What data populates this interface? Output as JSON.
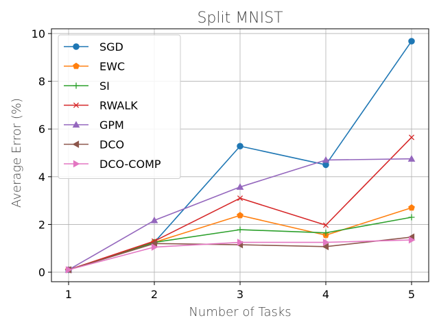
{
  "chart_data": {
    "type": "line",
    "title": "Split MNIST",
    "xlabel": "Number of Tasks",
    "ylabel": "Average Error (%)",
    "x": [
      1,
      2,
      3,
      4,
      5
    ],
    "xticks": [
      "1",
      "2",
      "3",
      "4",
      "5"
    ],
    "yticks": [
      "0",
      "2",
      "4",
      "6",
      "8",
      "10"
    ],
    "xlim": [
      0.8,
      5.2
    ],
    "ylim": [
      -0.4,
      10.2
    ],
    "grid": true,
    "legend_position": "upper-left",
    "series": [
      {
        "name": "SGD",
        "values": [
          0.1,
          1.25,
          5.28,
          4.5,
          9.68
        ],
        "color": "#1f77b4",
        "marker": "circle"
      },
      {
        "name": "EWC",
        "values": [
          0.1,
          1.25,
          2.38,
          1.55,
          2.7
        ],
        "color": "#ff7f0e",
        "marker": "pentagon"
      },
      {
        "name": "SI",
        "values": [
          0.1,
          1.25,
          1.78,
          1.65,
          2.3
        ],
        "color": "#2ca02c",
        "marker": "plus"
      },
      {
        "name": "RWALK",
        "values": [
          0.1,
          1.3,
          3.1,
          1.97,
          5.65
        ],
        "color": "#d62728",
        "marker": "x"
      },
      {
        "name": "GPM",
        "values": [
          0.1,
          2.17,
          3.57,
          4.7,
          4.75
        ],
        "color": "#9467bd",
        "marker": "triangle-up"
      },
      {
        "name": "DCO",
        "values": [
          0.1,
          1.2,
          1.15,
          1.07,
          1.47
        ],
        "color": "#8c564b",
        "marker": "triangle-left"
      },
      {
        "name": "DCO-COMP",
        "values": [
          0.1,
          1.05,
          1.25,
          1.25,
          1.35
        ],
        "color": "#e377c2",
        "marker": "triangle-right"
      }
    ]
  }
}
